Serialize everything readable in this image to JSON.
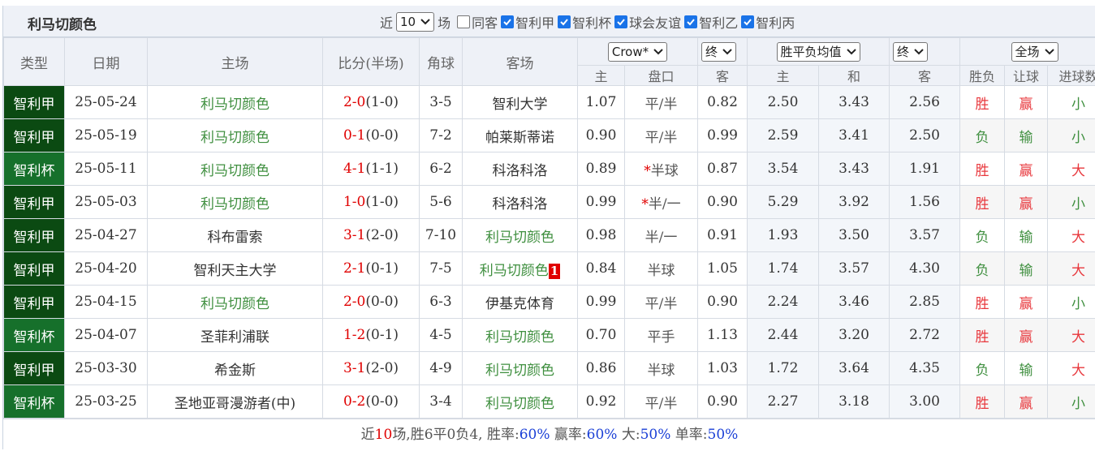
{
  "header": {
    "title": "利马切颜色",
    "recent_prefix": "近",
    "recent_count": "10",
    "recent_suffix": "场",
    "filters": [
      {
        "label": "同客",
        "checked": false
      },
      {
        "label": "智利甲",
        "checked": true
      },
      {
        "label": "智利杯",
        "checked": true
      },
      {
        "label": "球会友谊",
        "checked": true
      },
      {
        "label": "智利乙",
        "checked": true
      },
      {
        "label": "智利丙",
        "checked": true
      }
    ]
  },
  "table": {
    "columns": [
      "类型",
      "日期",
      "主场",
      "比分(半场)",
      "角球",
      "客场"
    ],
    "selects": [
      "Crow*",
      "终",
      "胜平负均值",
      "终",
      "全场"
    ],
    "subcolumns": [
      "主",
      "盘口",
      "客",
      "主",
      "和",
      "客",
      "胜负",
      "让球",
      "进球数"
    ],
    "rows": [
      {
        "type": "智利甲",
        "type_color": "#0b4a12",
        "date": "25-05-24",
        "home": "利马切颜色",
        "score": "2-0",
        "half": "(1-0)",
        "corners": "3-5",
        "away": "智利大学",
        "odds_home": "1.07",
        "handicap": "平/半",
        "odds_away": "0.82",
        "eu_home": "2.50",
        "eu_draw": "3.43",
        "eu_away": "2.56",
        "result": "胜",
        "handicap_result": "赢",
        "goals_result": "小"
      },
      {
        "type": "智利甲",
        "type_color": "#0b4a12",
        "date": "25-05-19",
        "home": "利马切颜色",
        "score": "0-1",
        "half": "(0-0)",
        "corners": "7-2",
        "away": "帕莱斯蒂诺",
        "odds_home": "0.90",
        "handicap": "平/半",
        "odds_away": "0.99",
        "eu_home": "2.59",
        "eu_draw": "3.41",
        "eu_away": "2.50",
        "result": "负",
        "handicap_result": "输",
        "goals_result": "小"
      },
      {
        "type": "智利杯",
        "type_color": "#16702b",
        "date": "25-05-11",
        "home": "利马切颜色",
        "score": "4-1",
        "half": "(1-1)",
        "corners": "6-2",
        "away": "科洛科洛",
        "odds_home": "0.89",
        "handicap_star": "*",
        "handicap": "半球",
        "odds_away": "0.87",
        "eu_home": "3.54",
        "eu_draw": "3.43",
        "eu_away": "1.91",
        "result": "胜",
        "handicap_result": "赢",
        "goals_result": "大"
      },
      {
        "type": "智利甲",
        "type_color": "#0b4a12",
        "date": "25-05-03",
        "home": "利马切颜色",
        "score": "1-0",
        "half": "(1-0)",
        "corners": "5-6",
        "away": "科洛科洛",
        "odds_home": "0.99",
        "handicap_star": "*",
        "handicap": "半/一",
        "odds_away": "0.90",
        "eu_home": "5.29",
        "eu_draw": "3.92",
        "eu_away": "1.56",
        "result": "胜",
        "handicap_result": "赢",
        "goals_result": "小"
      },
      {
        "type": "智利甲",
        "type_color": "#0b4a12",
        "date": "25-04-27",
        "home": "科布雷索",
        "score": "3-1",
        "half": "(2-0)",
        "corners": "7-10",
        "away": "利马切颜色",
        "odds_home": "0.98",
        "handicap": "半/一",
        "odds_away": "0.91",
        "eu_home": "1.93",
        "eu_draw": "3.50",
        "eu_away": "3.57",
        "result": "负",
        "handicap_result": "输",
        "goals_result": "大"
      },
      {
        "type": "智利甲",
        "type_color": "#0b4a12",
        "date": "25-04-20",
        "home": "智利天主大学",
        "score": "2-1",
        "half": "(0-1)",
        "corners": "7-5",
        "away": "利马切颜色",
        "away_badge": "1",
        "odds_home": "0.84",
        "handicap": "半球",
        "odds_away": "1.05",
        "eu_home": "1.74",
        "eu_draw": "3.57",
        "eu_away": "4.30",
        "result": "负",
        "handicap_result": "输",
        "goals_result": "大"
      },
      {
        "type": "智利甲",
        "type_color": "#0b4a12",
        "date": "25-04-15",
        "home": "利马切颜色",
        "score": "2-0",
        "half": "(0-0)",
        "corners": "6-3",
        "away": "伊基克体育",
        "odds_home": "0.99",
        "handicap": "平/半",
        "odds_away": "0.90",
        "eu_home": "2.24",
        "eu_draw": "3.46",
        "eu_away": "2.85",
        "result": "胜",
        "handicap_result": "赢",
        "goals_result": "小"
      },
      {
        "type": "智利杯",
        "type_color": "#16702b",
        "date": "25-04-07",
        "home": "圣菲利浦联",
        "score": "1-2",
        "half": "(0-1)",
        "corners": "4-5",
        "away": "利马切颜色",
        "odds_home": "0.70",
        "handicap": "平手",
        "odds_away": "1.13",
        "eu_home": "2.44",
        "eu_draw": "3.20",
        "eu_away": "2.72",
        "result": "胜",
        "handicap_result": "赢",
        "goals_result": "大"
      },
      {
        "type": "智利甲",
        "type_color": "#0b4a12",
        "date": "25-03-30",
        "home": "希金斯",
        "score": "3-1",
        "half": "(2-0)",
        "corners": "4-9",
        "away": "利马切颜色",
        "odds_home": "0.86",
        "handicap": "半球",
        "odds_away": "1.03",
        "eu_home": "1.72",
        "eu_draw": "3.64",
        "eu_away": "4.35",
        "result": "负",
        "handicap_result": "输",
        "goals_result": "大"
      },
      {
        "type": "智利杯",
        "type_color": "#16702b",
        "date": "25-03-25",
        "home": "圣地亚哥漫游者(中)",
        "score": "0-2",
        "half": "(0-0)",
        "corners": "3-4",
        "away": "利马切颜色",
        "odds_home": "0.92",
        "handicap": "平/半",
        "odds_away": "0.90",
        "eu_home": "2.27",
        "eu_draw": "3.18",
        "eu_away": "3.00",
        "result": "胜",
        "handicap_result": "赢",
        "goals_result": "小"
      }
    ]
  },
  "mark_colors": {
    "胜": "#e8383d",
    "负": "#3f8f3f",
    "赢": "#e8383d",
    "输": "#3f8f3f",
    "大": "#e8383d",
    "小": "#3f8f3f"
  },
  "footer": [
    {
      "text": "近"
    },
    {
      "text": "10",
      "color": "#e00000"
    },
    {
      "text": "场,胜6平0负4, 胜率:"
    },
    {
      "text": "60%",
      "color": "#1a3fd6"
    },
    {
      "text": " 赢率:"
    },
    {
      "text": "60%",
      "color": "#1a3fd6"
    },
    {
      "text": " 大:"
    },
    {
      "text": "50%",
      "color": "#1a3fd6"
    },
    {
      "text": " 单率:"
    },
    {
      "text": "50%",
      "color": "#1a3fd6"
    }
  ]
}
